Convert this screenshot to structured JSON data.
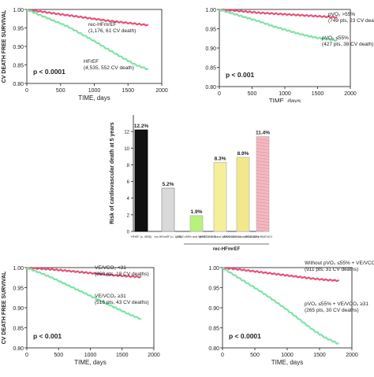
{
  "colors": {
    "pink": "#e8507a",
    "green": "#7fe3a8",
    "axis": "#444444",
    "text": "#222222",
    "bar_black": "#111111",
    "bar_gray": "#ffffff",
    "bar_green": "#b8f27a",
    "bar_yellow1": "#f6ef9a",
    "bar_yellow2": "#f3e889",
    "bar_pink": "#f2b8c0"
  },
  "chart_data": [
    {
      "type": "line",
      "panel": "top-left",
      "ylabel": "CV DEATH FREE SURVIVAL",
      "xlabel": "TIME, days",
      "xticks": [
        "0",
        "500",
        "1000",
        "1500",
        "2000"
      ],
      "yticks": [
        "0.80",
        "0.85",
        "0.90",
        "0.95",
        "1.00"
      ],
      "xlim": [
        0,
        2000
      ],
      "ylim": [
        0.8,
        1.0
      ],
      "pvalue": "p < 0.0001",
      "series": [
        {
          "name": "rec-HFmrEF",
          "count": "(1,176, 61 CV death)",
          "color": "pink",
          "x": [
            0,
            200,
            400,
            600,
            800,
            1000,
            1200,
            1400,
            1600,
            1800
          ],
          "y": [
            1.0,
            0.995,
            0.99,
            0.985,
            0.98,
            0.975,
            0.97,
            0.966,
            0.962,
            0.958
          ]
        },
        {
          "name": "HFrEF",
          "count": "(4,535, 552 CV death)",
          "color": "green",
          "x": [
            0,
            200,
            400,
            600,
            800,
            1000,
            1200,
            1400,
            1600,
            1800
          ],
          "y": [
            1.0,
            0.985,
            0.97,
            0.955,
            0.935,
            0.915,
            0.893,
            0.872,
            0.852,
            0.838
          ]
        }
      ]
    },
    {
      "type": "line",
      "panel": "top-right",
      "ylabel": "",
      "xlabel": "TIME, days",
      "xticks": [
        "0",
        "500",
        "1000",
        "1500",
        "2000"
      ],
      "yticks": [
        "0.80",
        "0.85",
        "0.90",
        "0.95",
        "1.00"
      ],
      "xlim": [
        0,
        2000
      ],
      "ylim": [
        0.8,
        1.0
      ],
      "pvalue": "p < 0.001",
      "series": [
        {
          "name": "pVO₂ >55%",
          "count": "(749 pts, 23 CV deaths)",
          "color": "pink",
          "x": [
            0,
            200,
            400,
            600,
            800,
            1000,
            1200,
            1400,
            1600,
            1800
          ],
          "y": [
            1.0,
            0.998,
            0.995,
            0.992,
            0.99,
            0.988,
            0.986,
            0.984,
            0.982,
            0.98
          ]
        },
        {
          "name": "pVO₂ ≤55%",
          "count": "(427 pts, 38 CV death)",
          "color": "green",
          "x": [
            0,
            200,
            400,
            600,
            800,
            1000,
            1200,
            1400,
            1600,
            1800
          ],
          "y": [
            1.0,
            0.99,
            0.98,
            0.97,
            0.958,
            0.948,
            0.938,
            0.93,
            0.924,
            0.92
          ]
        }
      ]
    },
    {
      "type": "bar",
      "panel": "center",
      "ylabel": "Risk of cardiovascular death at 5 years",
      "ylim": [
        0,
        14
      ],
      "yticks": [
        "0",
        "2",
        "4",
        "6",
        "8",
        "10",
        "12"
      ],
      "categories": [
        "HFrEF (n. 4535)",
        "rec-HFmrEF (n. 1176)",
        "pVO2 ≤55% and VE/VCO2 < 31",
        "pVO2 > 55% and VE/VCO2 < 31",
        "pVO2 ≤55% and VE/VCO2 ≥ 31",
        "pVO2 ≤55% + VE/VCO2 ≥ 31"
      ],
      "values": [
        12.2,
        5.2,
        1.9,
        8.3,
        8.9,
        11.4
      ],
      "data_labels": [
        "12.2%",
        "5.2%",
        "1.9%",
        "8.3%",
        "8.9%",
        "11.4%"
      ],
      "bar_colors": [
        "bar_black",
        "bar_gray",
        "bar_green",
        "bar_yellow1",
        "bar_yellow2",
        "bar_pink"
      ],
      "group_label": "rec-HFmrEF"
    },
    {
      "type": "line",
      "panel": "bottom-left",
      "ylabel": "CV DEATH FREE SURVIVAL",
      "xlabel": "TIME, days",
      "xticks": [
        "0",
        "500",
        "1000",
        "1500",
        "2000"
      ],
      "yticks": [
        "0.80",
        "0.85",
        "0.90",
        "0.95",
        "1.00"
      ],
      "xlim": [
        0,
        2000
      ],
      "ylim": [
        0.8,
        1.0
      ],
      "pvalue": "p < 0.001",
      "series": [
        {
          "name": "VE/VCO₂ <31",
          "count": "(660 pts, 18 CV deaths)",
          "color": "pink",
          "x": [
            0,
            200,
            400,
            600,
            800,
            1000,
            1200,
            1400,
            1600,
            1800
          ],
          "y": [
            1.0,
            0.998,
            0.996,
            0.993,
            0.99,
            0.987,
            0.984,
            0.981,
            0.979,
            0.977
          ]
        },
        {
          "name": "VE/VCO₂ ≥31",
          "count": "(516 pts, 43 CV deaths)",
          "color": "green",
          "x": [
            0,
            200,
            400,
            600,
            800,
            1000,
            1200,
            1400,
            1600,
            1800
          ],
          "y": [
            1.0,
            0.988,
            0.975,
            0.96,
            0.945,
            0.93,
            0.915,
            0.9,
            0.885,
            0.872
          ]
        }
      ]
    },
    {
      "type": "line",
      "panel": "bottom-right",
      "ylabel": "",
      "xlabel": "TIME, days",
      "xticks": [
        "0",
        "500",
        "1000",
        "1500",
        "2000"
      ],
      "yticks": [
        "0.80",
        "0.85",
        "0.90",
        "0.95",
        "1.00"
      ],
      "xlim": [
        0,
        2000
      ],
      "ylim": [
        0.8,
        1.0
      ],
      "pvalue": "p < 0.0001",
      "series": [
        {
          "name": "Without pVO₂ ≤55% + VE/VCO₂ ≥31",
          "count": "(911 pts, 31 CV deaths)",
          "color": "pink",
          "x": [
            0,
            200,
            400,
            600,
            800,
            1000,
            1200,
            1400,
            1600,
            1800
          ],
          "y": [
            1.0,
            0.997,
            0.993,
            0.989,
            0.985,
            0.981,
            0.977,
            0.973,
            0.97,
            0.968
          ]
        },
        {
          "name": "pVO₂ ≤55% + VE/VCO₂ ≥31",
          "count": "(265 pts, 30 CV deaths)",
          "color": "green",
          "x": [
            0,
            200,
            400,
            600,
            800,
            1000,
            1200,
            1400,
            1600,
            1800
          ],
          "y": [
            1.0,
            0.98,
            0.96,
            0.94,
            0.918,
            0.895,
            0.87,
            0.845,
            0.825,
            0.81
          ]
        }
      ]
    }
  ]
}
